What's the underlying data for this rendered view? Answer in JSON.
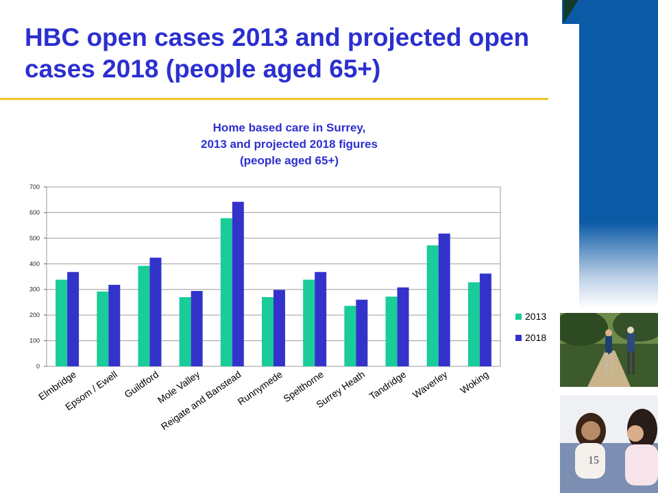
{
  "slide": {
    "title": "HBC open cases 2013 and projected open cases 2018 (people aged 65+)",
    "page_number": "15"
  },
  "colors": {
    "title": "#2b2fcf",
    "rule": "#f2c523",
    "panel": "#0b5aa6",
    "series_2013": "#19cc9a",
    "series_2018": "#3333cc"
  },
  "decor": {
    "corner_icon": "triangle-icon",
    "photo_1": "couple-walking-photo",
    "photo_2": "women-talking-photo"
  },
  "chart_data": {
    "type": "bar",
    "title": [
      "Home based care in Surrey,",
      "2013 and projected 2018 figures",
      "(people aged 65+)"
    ],
    "xlabel": "",
    "ylabel": "",
    "ylim": [
      0,
      700
    ],
    "yticks": [
      0,
      100,
      200,
      300,
      400,
      500,
      600,
      700
    ],
    "grid": true,
    "legend": "right",
    "categories": [
      "Elmbridge",
      "Epsom / Ewell",
      "Guildford",
      "Mole Valley",
      "Reigate and Banstead",
      "Runnymede",
      "Spelthorne",
      "Surrey Heath",
      "Tandridge",
      "Waverley",
      "Woking"
    ],
    "series": [
      {
        "name": "2013",
        "color": "#19cc9a",
        "values": [
          338,
          292,
          392,
          270,
          578,
          270,
          338,
          236,
          272,
          472,
          328
        ]
      },
      {
        "name": "2018",
        "color": "#3333cc",
        "values": [
          368,
          318,
          424,
          294,
          642,
          298,
          368,
          260,
          308,
          518,
          362
        ]
      }
    ]
  }
}
